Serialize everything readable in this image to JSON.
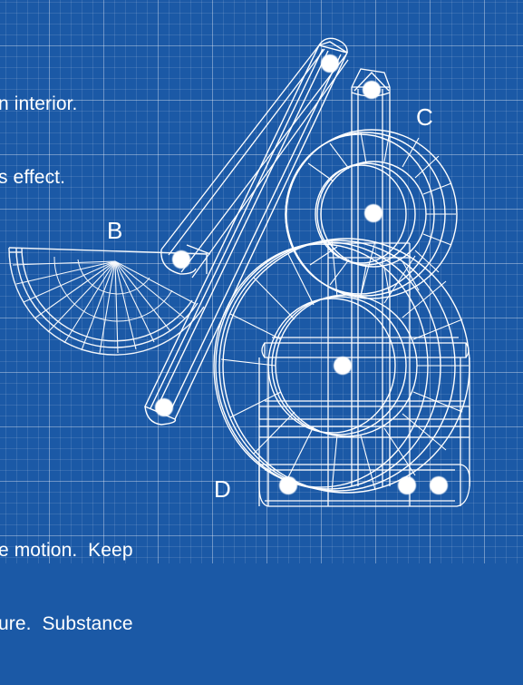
{
  "caption_top": {
    "line1": "n interior.",
    "line2": "s effect."
  },
  "caption_bottom": {
    "line1": "e motion.  Keep",
    "line2": "ure.  Substance"
  },
  "labels": {
    "b": "B",
    "c": "C",
    "d": "D"
  },
  "colors": {
    "background": "#1b59a6",
    "line": "#ffffff"
  }
}
